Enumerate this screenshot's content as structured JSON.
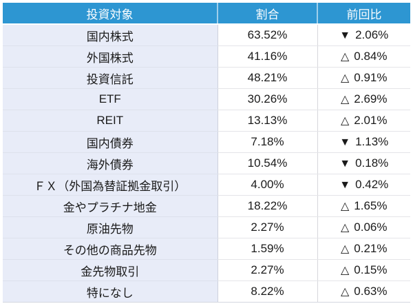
{
  "table": {
    "headers": [
      {
        "id": "target",
        "label": "投資対象"
      },
      {
        "id": "ratio",
        "label": "割合"
      },
      {
        "id": "change",
        "label": "前回比"
      }
    ],
    "rows": [
      {
        "name": "国内株式",
        "ratio": "63.52%",
        "change_symbol": "▼",
        "change_value": "2.06%",
        "direction": "down"
      },
      {
        "name": "外国株式",
        "ratio": "41.16%",
        "change_symbol": "△",
        "change_value": "0.84%",
        "direction": "up"
      },
      {
        "name": "投資信託",
        "ratio": "48.21%",
        "change_symbol": "△",
        "change_value": "0.91%",
        "direction": "up"
      },
      {
        "name": "ETF",
        "ratio": "30.26%",
        "change_symbol": "△",
        "change_value": "2.69%",
        "direction": "up"
      },
      {
        "name": "REIT",
        "ratio": "13.13%",
        "change_symbol": "△",
        "change_value": "2.01%",
        "direction": "up"
      },
      {
        "name": "国内債券",
        "ratio": "7.18%",
        "change_symbol": "▼",
        "change_value": "1.13%",
        "direction": "down"
      },
      {
        "name": "海外債券",
        "ratio": "10.54%",
        "change_symbol": "▼",
        "change_value": "0.18%",
        "direction": "down"
      },
      {
        "name": "ＦＸ（外国為替証拠金取引）",
        "ratio": "4.00%",
        "change_symbol": "▼",
        "change_value": "0.42%",
        "direction": "down"
      },
      {
        "name": "金やプラチナ地金",
        "ratio": "18.22%",
        "change_symbol": "△",
        "change_value": "1.65%",
        "direction": "up"
      },
      {
        "name": "原油先物",
        "ratio": "2.27%",
        "change_symbol": "△",
        "change_value": "0.06%",
        "direction": "up"
      },
      {
        "name": "その他の商品先物",
        "ratio": "1.59%",
        "change_symbol": "△",
        "change_value": "0.21%",
        "direction": "up"
      },
      {
        "name": "金先物取引",
        "ratio": "2.27%",
        "change_symbol": "△",
        "change_value": "0.15%",
        "direction": "up"
      },
      {
        "name": "特になし",
        "ratio": "8.22%",
        "change_symbol": "△",
        "change_value": "0.63%",
        "direction": "up"
      }
    ],
    "colors": {
      "header_bg": "#2D96D2",
      "header_text": "#FDFEFF",
      "name_cell_bg": "#E8ECF8",
      "value_cell_bg": "#FFFFFF",
      "body_text": "#1A1A1A"
    }
  },
  "chart_data": {
    "type": "table",
    "title": "",
    "columns": [
      "投資対象",
      "割合",
      "前回比"
    ],
    "rows": [
      [
        "国内株式",
        63.52,
        -2.06
      ],
      [
        "外国株式",
        41.16,
        0.84
      ],
      [
        "投資信託",
        48.21,
        0.91
      ],
      [
        "ETF",
        30.26,
        2.69
      ],
      [
        "REIT",
        13.13,
        2.01
      ],
      [
        "国内債券",
        7.18,
        -1.13
      ],
      [
        "海外債券",
        10.54,
        -0.18
      ],
      [
        "ＦＸ（外国為替証拠金取引）",
        4.0,
        -0.42
      ],
      [
        "金やプラチナ地金",
        18.22,
        1.65
      ],
      [
        "原油先物",
        2.27,
        0.06
      ],
      [
        "その他の商品先物",
        1.59,
        0.21
      ],
      [
        "金先物取引",
        2.27,
        0.15
      ],
      [
        "特になし",
        8.22,
        0.63
      ]
    ]
  }
}
